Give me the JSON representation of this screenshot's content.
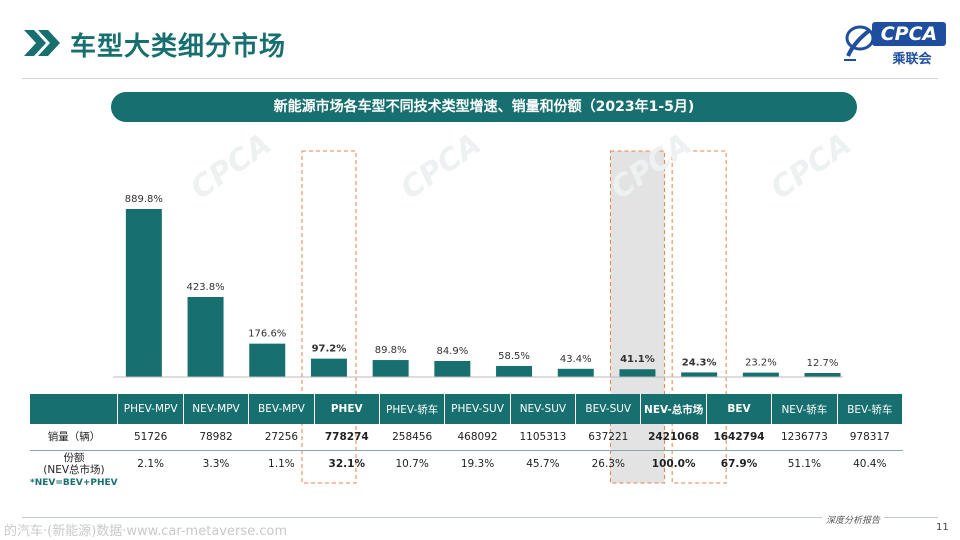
{
  "header": {
    "title": "车型大类细分市场",
    "logo_text": "CPCA",
    "logo_sub": "乘联会"
  },
  "chart_data": {
    "type": "bar",
    "title": "新能源市场各车型不同技术类型增速、销量和份额（2023年1-5月)",
    "categories": [
      "PHEV-MPV",
      "NEV-MPV",
      "BEV-MPV",
      "PHEV",
      "PHEV-轿车",
      "PHEV-SUV",
      "NEV-SUV",
      "BEV-SUV",
      "NEV-总市场",
      "BEV",
      "NEV-轿车",
      "BEV-轿车"
    ],
    "series": [
      {
        "values": [
          889.8,
          423.8,
          176.6,
          97.2,
          89.8,
          84.9,
          58.5,
          43.4,
          41.1,
          24.3,
          23.2,
          12.7
        ],
        "labels": [
          "889.8%",
          "423.8%",
          "176.6%",
          "97.2%",
          "89.8%",
          "84.9%",
          "58.5%",
          "43.4%",
          "41.1%",
          "24.3%",
          "23.2%",
          "12.7%"
        ]
      }
    ],
    "ylim": [
      0,
      1000
    ],
    "unit": "%",
    "highlighted_categories": [
      "PHEV",
      "NEV-总市场",
      "BEV"
    ],
    "grid": false,
    "legend": "none",
    "bar_color": "#17706f",
    "highlight_fill": "#e3e3e3",
    "highlight_border": "#e8814a"
  },
  "table": {
    "rows": [
      {
        "label": "销量（辆）",
        "values": [
          "51726",
          "78982",
          "27256",
          "778274",
          "258456",
          "468092",
          "1105313",
          "637221",
          "2421068",
          "1642794",
          "1236773",
          "978317"
        ]
      },
      {
        "label_line1": "份额",
        "label_line2": "(NEV总市场)",
        "values": [
          "2.1%",
          "3.3%",
          "1.1%",
          "32.1%",
          "10.7%",
          "19.3%",
          "45.7%",
          "26.3%",
          "100.0%",
          "67.9%",
          "51.1%",
          "40.4%"
        ]
      }
    ]
  },
  "footnote": "*NEV=BEV+PHEV",
  "footer": {
    "watermark": "的汽车·(新能源)数据·www.car-metaverse.com",
    "report_label": "深度分析报告",
    "page_number": "11"
  }
}
